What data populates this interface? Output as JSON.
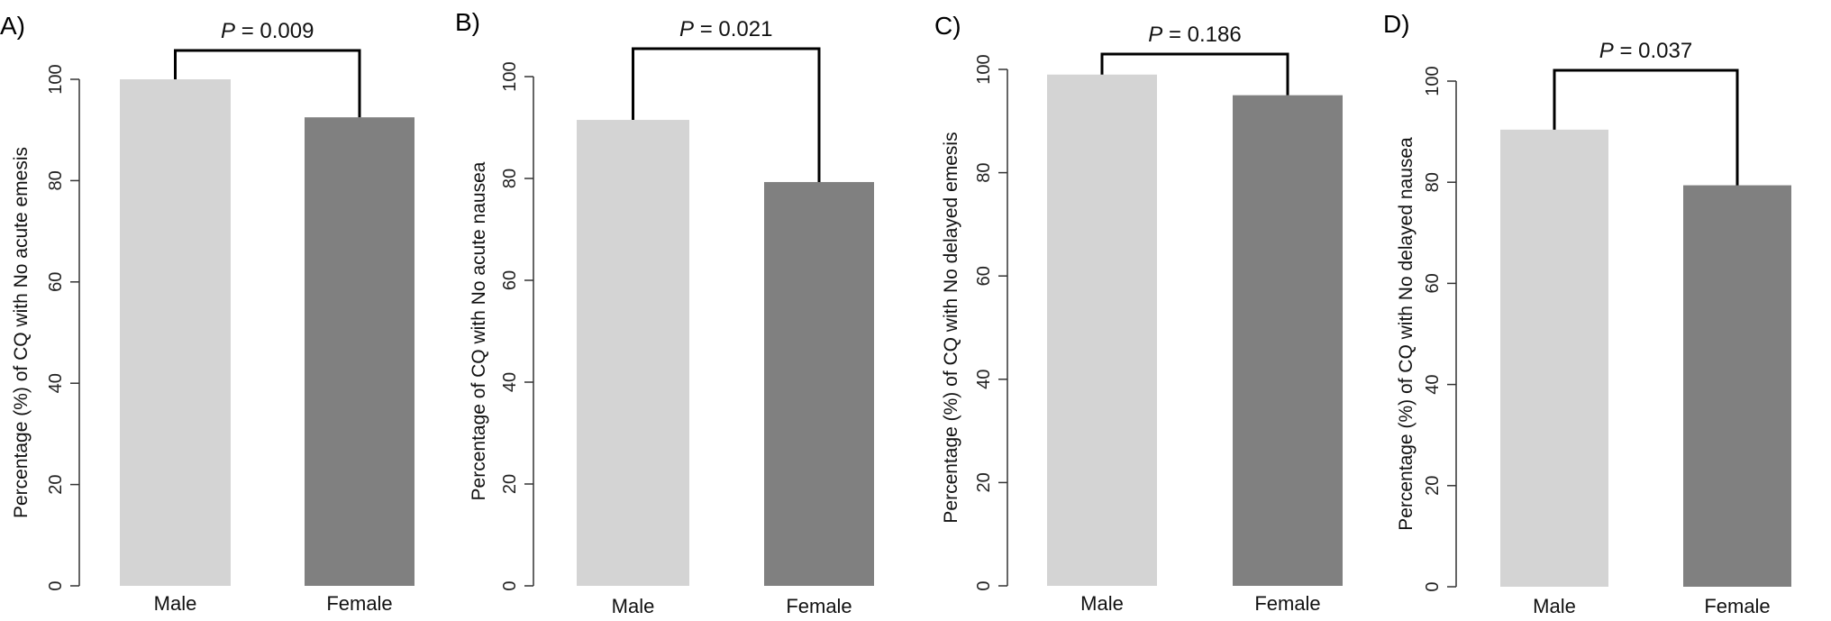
{
  "chart_data": [
    {
      "panel": "A)",
      "type": "bar",
      "categories": [
        "Male",
        "Female"
      ],
      "values": [
        100,
        92.5
      ],
      "ylabel": "Percentage (%) of CQ with No acute emesis",
      "ylim": [
        0,
        100
      ],
      "yticks": [
        0,
        20,
        40,
        60,
        80,
        100
      ],
      "p_label": "P",
      "p_value": " = 0.009",
      "bar_colors": [
        "#d4d4d4",
        "#808080"
      ]
    },
    {
      "panel": "B)",
      "type": "bar",
      "categories": [
        "Male",
        "Female"
      ],
      "values": [
        91.5,
        79.3
      ],
      "ylabel": "Percentage of CQ with No acute nausea",
      "ylim": [
        0,
        100
      ],
      "yticks": [
        0,
        20,
        40,
        60,
        80,
        100
      ],
      "p_label": "P",
      "p_value": " = 0.021",
      "bar_colors": [
        "#d4d4d4",
        "#808080"
      ]
    },
    {
      "panel": "C)",
      "type": "bar",
      "categories": [
        "Male",
        "Female"
      ],
      "values": [
        99,
        95
      ],
      "ylabel": "Percentage (%) of CQ with No delayed emesis",
      "ylim": [
        0,
        100
      ],
      "yticks": [
        0,
        20,
        40,
        60,
        80,
        100
      ],
      "p_label": "P",
      "p_value": " = 0.186",
      "bar_colors": [
        "#d4d4d4",
        "#808080"
      ]
    },
    {
      "panel": "D)",
      "type": "bar",
      "categories": [
        "Male",
        "Female"
      ],
      "values": [
        90.4,
        79.4
      ],
      "ylabel": "Percentage (%) of CQ with No delayed nausea",
      "ylim": [
        0,
        100
      ],
      "yticks": [
        0,
        20,
        40,
        60,
        80,
        100
      ],
      "p_label": "P",
      "p_value": " = 0.037",
      "bar_colors": [
        "#d4d4d4",
        "#808080"
      ]
    }
  ]
}
